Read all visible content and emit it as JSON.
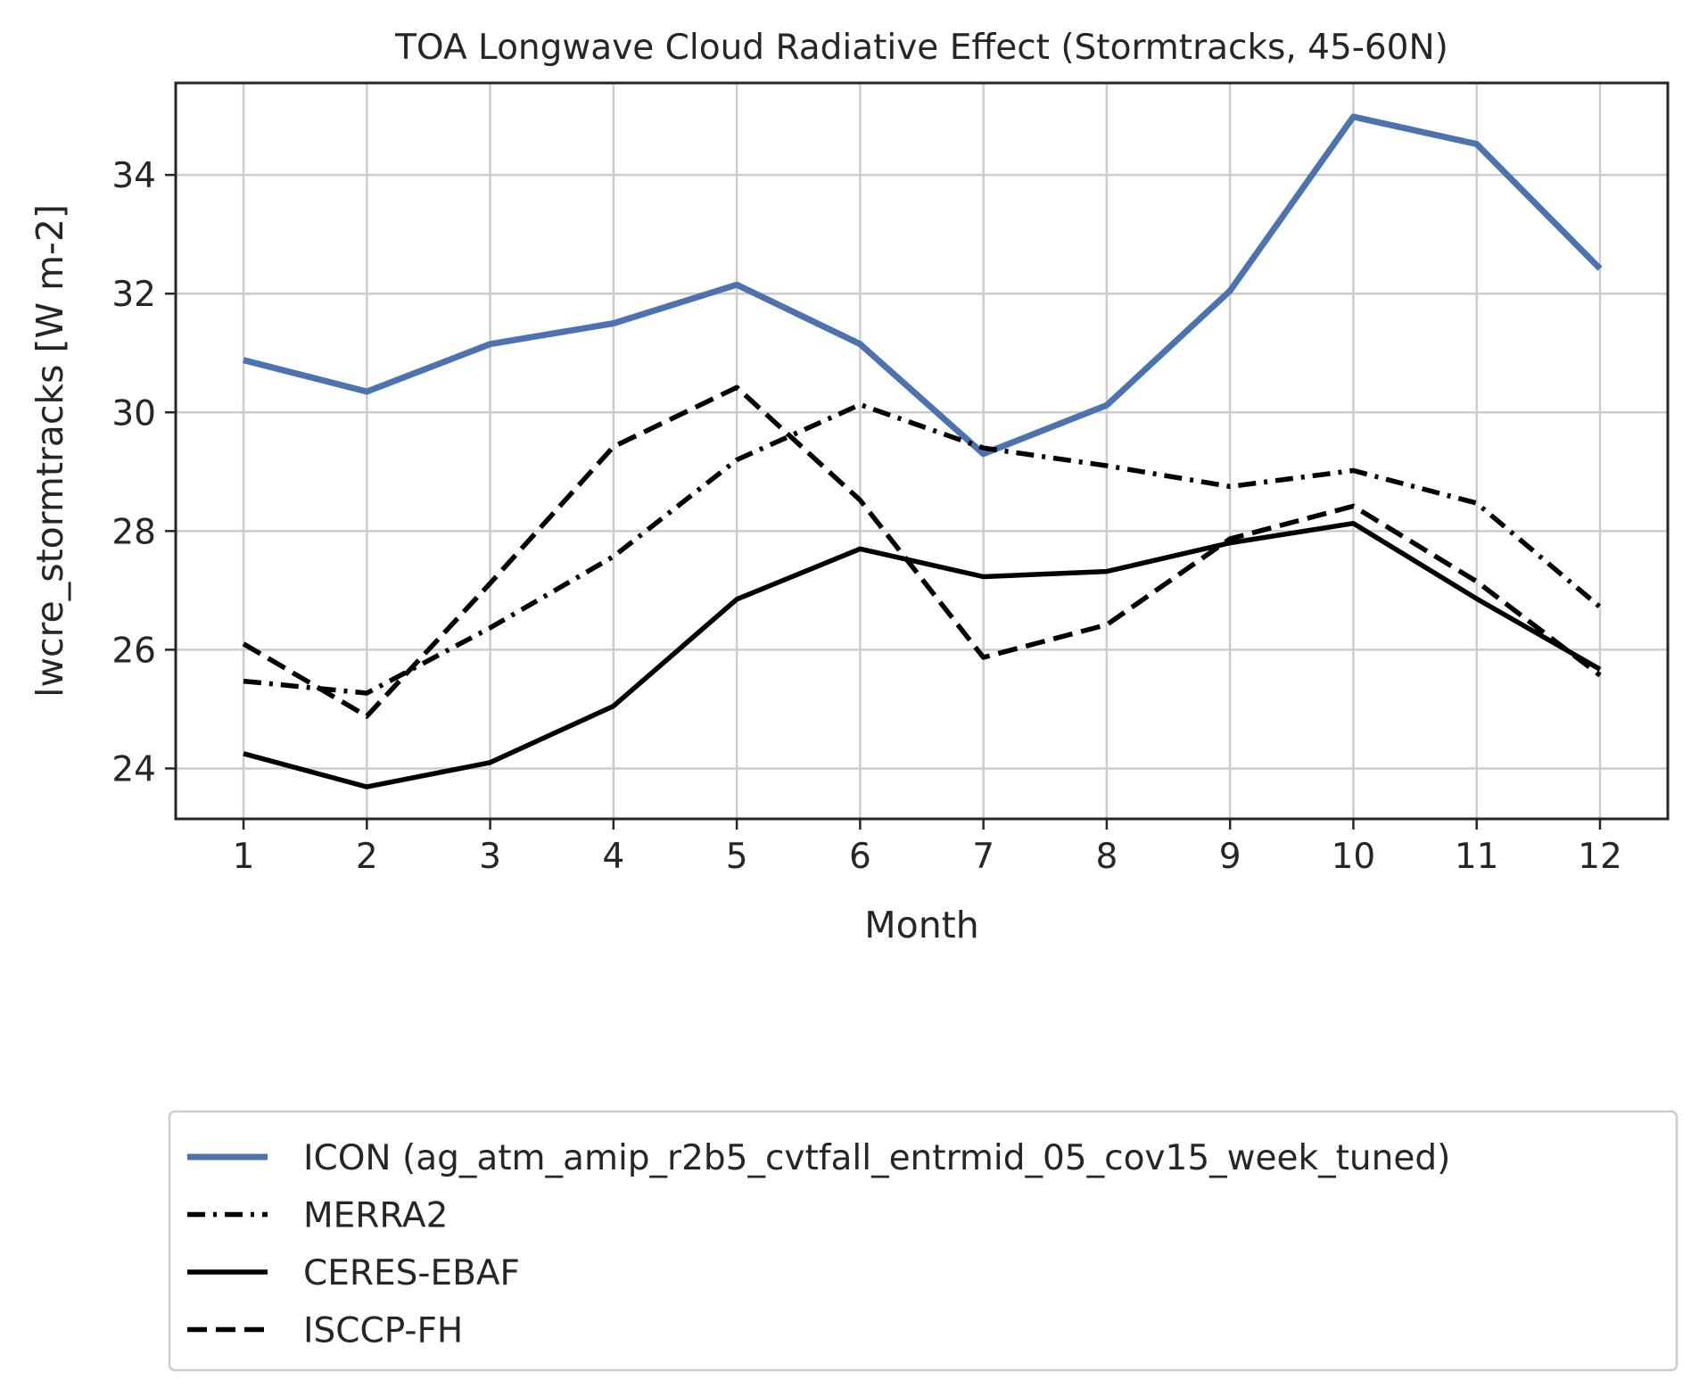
{
  "chart_data": {
    "type": "line",
    "title": "TOA Longwave Cloud Radiative Effect (Stormtracks, 45-60N)",
    "xlabel": "Month",
    "ylabel": "lwcre_stormtracks [W m-2]",
    "x": [
      1,
      2,
      3,
      4,
      5,
      6,
      7,
      8,
      9,
      10,
      11,
      12
    ],
    "xlim": [
      0.45,
      12.55
    ],
    "ylim": [
      23.15,
      35.55
    ],
    "yticks": [
      24,
      26,
      28,
      30,
      32,
      34
    ],
    "grid": true,
    "legend_position": "below",
    "series": [
      {
        "name": "ICON (ag_atm_amip_r2b5_cvtfall_entrmid_05_cov15_week_tuned)",
        "values": [
          30.88,
          30.35,
          31.15,
          31.5,
          32.15,
          31.15,
          29.3,
          30.12,
          32.05,
          34.98,
          34.52,
          32.42
        ],
        "color": "#4c72b0",
        "style": "solid"
      },
      {
        "name": "MERRA2",
        "values": [
          25.47,
          25.27,
          26.37,
          27.57,
          29.2,
          30.13,
          29.4,
          29.1,
          28.75,
          29.02,
          28.47,
          26.72
        ],
        "color": "#000000",
        "style": "dashdot"
      },
      {
        "name": "CERES-EBAF",
        "values": [
          24.25,
          23.69,
          24.1,
          25.05,
          26.85,
          27.7,
          27.23,
          27.32,
          27.8,
          28.13,
          26.86,
          25.67
        ],
        "color": "#000000",
        "style": "solid"
      },
      {
        "name": "ISCCP-FH",
        "values": [
          26.1,
          24.88,
          27.12,
          29.42,
          30.42,
          28.52,
          25.87,
          26.42,
          27.87,
          28.42,
          27.15,
          25.57
        ],
        "color": "#000000",
        "style": "dashed"
      }
    ]
  }
}
